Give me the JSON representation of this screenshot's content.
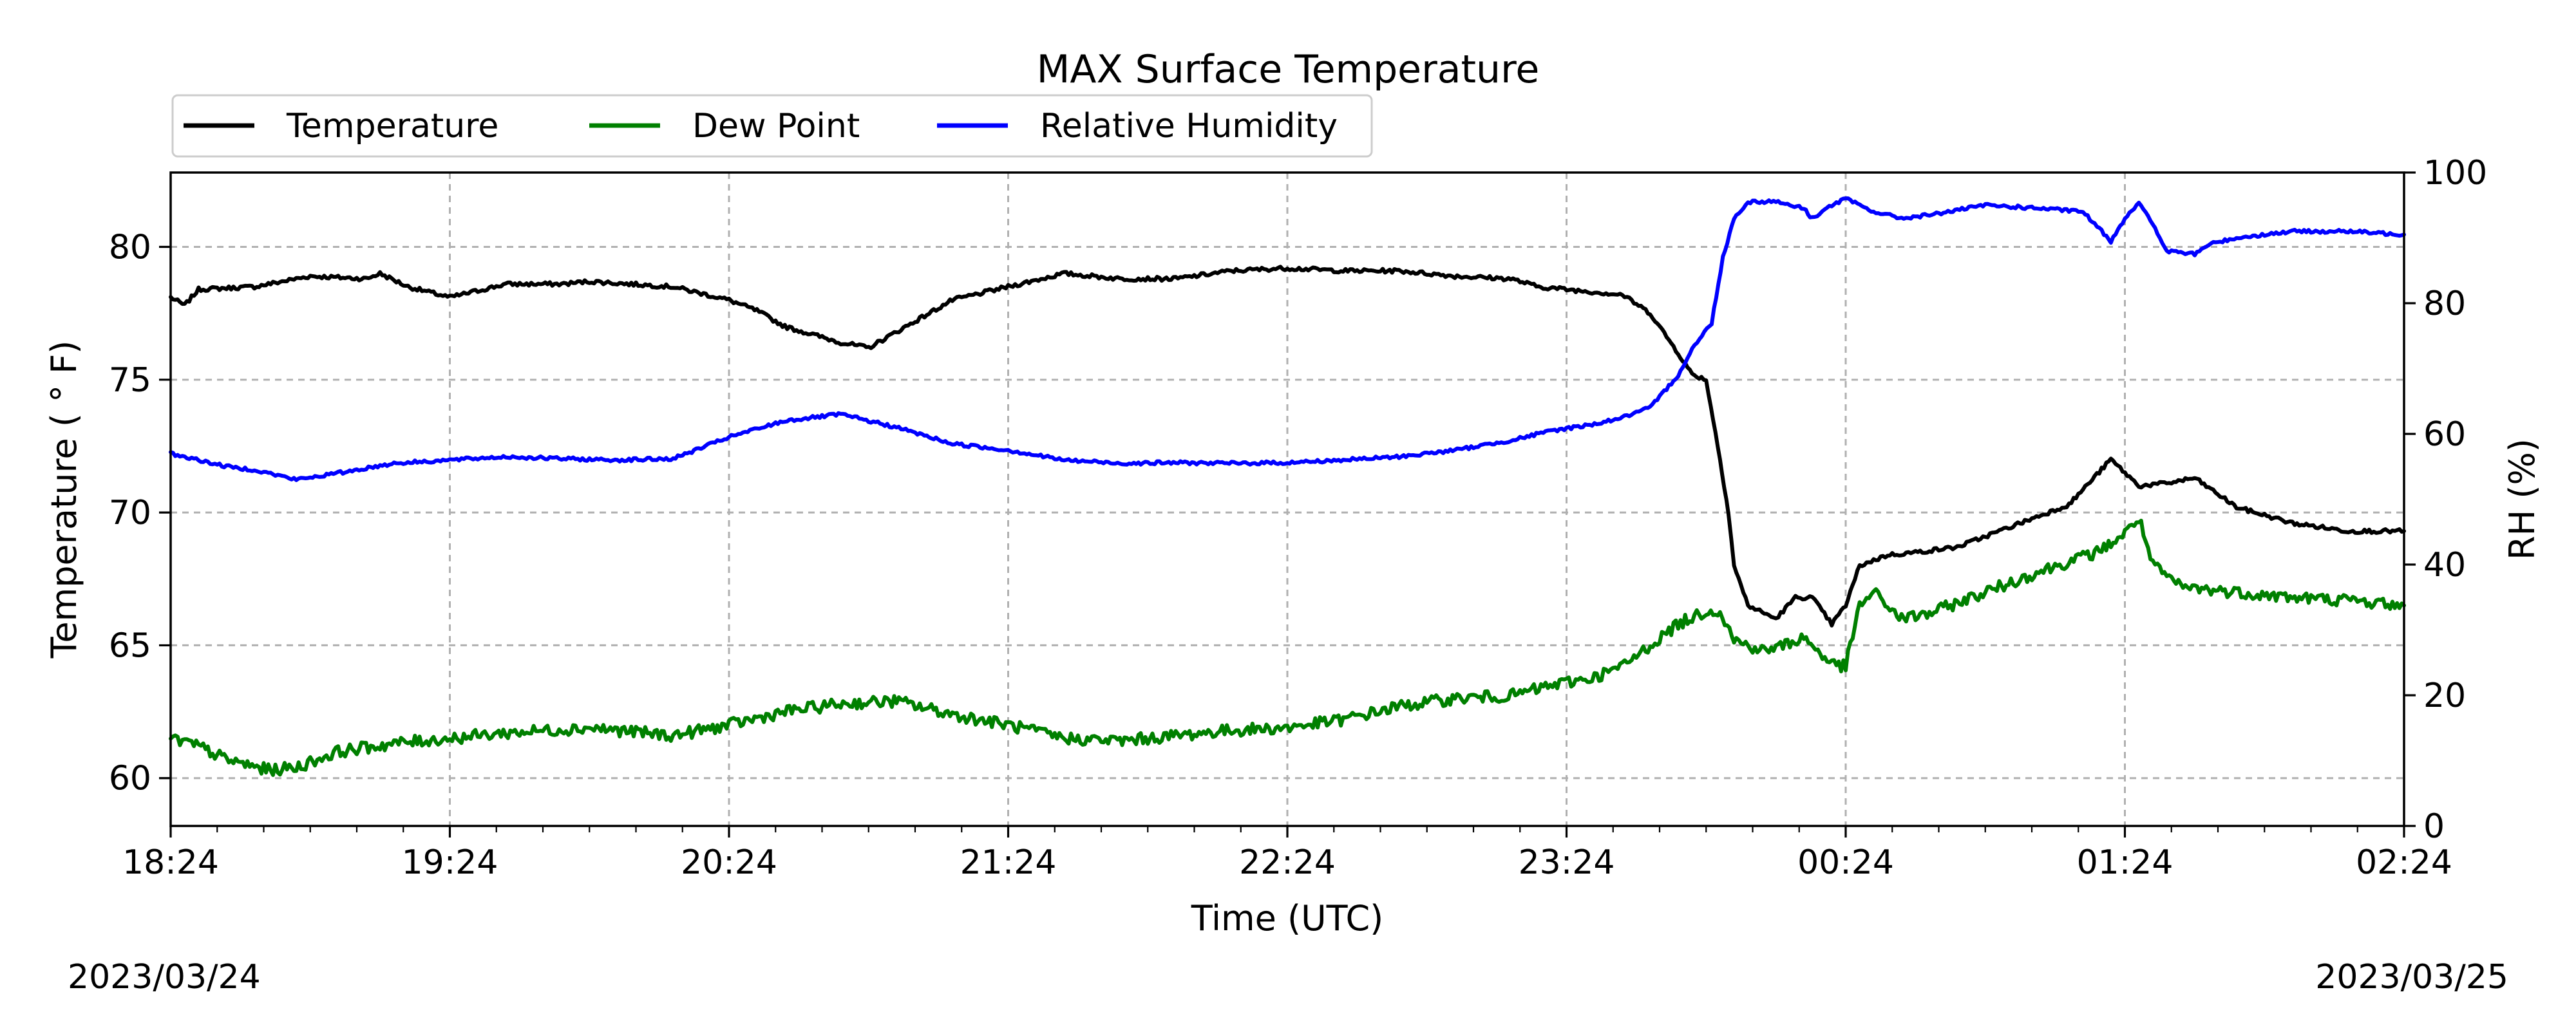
{
  "chart_data": {
    "type": "line",
    "title": "MAX Surface Temperature",
    "xlabel": "Time (UTC)",
    "ylabel": "Temperature ($^\\circ$F)",
    "ylabel_display": "Temperature ( ° F)",
    "y2label": "RH (%)",
    "x_ticks": [
      "18:24",
      "19:24",
      "20:24",
      "21:24",
      "22:24",
      "23:24",
      "00:24",
      "01:24",
      "02:24"
    ],
    "x_range_hours": [
      0,
      8
    ],
    "start_date": "2023/03/24",
    "end_date": "2023/03/25",
    "ylim": [
      58.2,
      82.8
    ],
    "y_ticks": [
      60,
      65,
      70,
      75,
      80
    ],
    "y2lim": [
      0,
      100
    ],
    "y2_ticks": [
      0,
      20,
      40,
      60,
      80,
      100
    ],
    "grid": true,
    "legend_position": "upper-left-outside",
    "series": [
      {
        "name": "Temperature",
        "axis": "left",
        "color": "#000000",
        "x": [
          0.0,
          0.05,
          0.1,
          0.3,
          0.5,
          0.7,
          0.75,
          0.85,
          1.0,
          1.2,
          1.4,
          1.5,
          1.8,
          2.0,
          2.1,
          2.2,
          2.4,
          2.5,
          2.6,
          2.8,
          3.0,
          3.2,
          3.4,
          3.6,
          3.8,
          4.0,
          4.2,
          4.4,
          4.6,
          4.8,
          4.9,
          5.0,
          5.1,
          5.2,
          5.3,
          5.4,
          5.45,
          5.5,
          5.55,
          5.58,
          5.6,
          5.65,
          5.75,
          5.82,
          5.88,
          5.95,
          6.0,
          6.05,
          6.15,
          6.25,
          6.4,
          6.6,
          6.8,
          6.95,
          7.0,
          7.05,
          7.15,
          7.25,
          7.4,
          7.6,
          7.8,
          8.0
        ],
        "y": [
          78.1,
          77.8,
          78.4,
          78.5,
          78.9,
          78.8,
          79.0,
          78.5,
          78.1,
          78.6,
          78.6,
          78.7,
          78.5,
          78.0,
          77.6,
          77.0,
          76.4,
          76.2,
          76.8,
          78.0,
          78.5,
          79.0,
          78.8,
          78.8,
          79.1,
          79.2,
          79.1,
          79.1,
          78.9,
          78.8,
          78.5,
          78.4,
          78.3,
          78.2,
          77.5,
          76.0,
          75.2,
          75.0,
          72.0,
          70.0,
          68.0,
          66.5,
          66.0,
          66.8,
          66.8,
          65.8,
          66.5,
          68.0,
          68.4,
          68.5,
          68.7,
          69.5,
          70.3,
          72.0,
          71.5,
          71.0,
          71.1,
          71.3,
          70.2,
          69.6,
          69.3,
          69.3
        ]
      },
      {
        "name": "Dew Point",
        "axis": "left",
        "color": "#008000",
        "x": [
          0.0,
          0.1,
          0.2,
          0.35,
          0.45,
          0.6,
          0.8,
          1.0,
          1.2,
          1.5,
          1.8,
          2.0,
          2.2,
          2.4,
          2.6,
          2.8,
          3.0,
          3.2,
          3.4,
          3.6,
          3.8,
          4.0,
          4.2,
          4.4,
          4.6,
          4.8,
          4.95,
          5.1,
          5.2,
          5.3,
          5.4,
          5.5,
          5.55,
          5.6,
          5.7,
          5.75,
          5.85,
          5.95,
          6.0,
          6.05,
          6.1,
          6.2,
          6.3,
          6.5,
          6.7,
          6.9,
          7.0,
          7.05,
          7.1,
          7.2,
          7.4,
          7.6,
          7.8,
          8.0
        ],
        "y": [
          61.5,
          61.2,
          60.7,
          60.3,
          60.4,
          61.0,
          61.3,
          61.5,
          61.7,
          61.9,
          61.6,
          62.0,
          62.5,
          62.8,
          62.9,
          62.4,
          62.0,
          61.5,
          61.4,
          61.6,
          61.8,
          61.9,
          62.2,
          62.7,
          63.0,
          63.1,
          63.5,
          63.8,
          64.2,
          65.0,
          65.8,
          66.3,
          66.3,
          65.2,
          64.8,
          64.9,
          65.3,
          64.3,
          64.2,
          66.5,
          67.0,
          66.0,
          66.2,
          67.0,
          67.8,
          68.5,
          69.2,
          69.8,
          68.0,
          67.2,
          67.0,
          66.8,
          66.7,
          66.5
        ]
      },
      {
        "name": "Relative Humidity",
        "axis": "right",
        "color": "#0000ff",
        "x": [
          0.0,
          0.1,
          0.2,
          0.3,
          0.45,
          0.6,
          0.8,
          1.0,
          1.2,
          1.4,
          1.6,
          1.8,
          2.0,
          2.2,
          2.4,
          2.6,
          2.8,
          3.0,
          3.2,
          3.4,
          3.6,
          3.8,
          4.0,
          4.2,
          4.4,
          4.6,
          4.8,
          4.95,
          5.1,
          5.2,
          5.3,
          5.4,
          5.45,
          5.52,
          5.56,
          5.6,
          5.65,
          5.75,
          5.85,
          5.88,
          5.95,
          6.0,
          6.1,
          6.2,
          6.3,
          6.5,
          6.7,
          6.85,
          6.95,
          7.0,
          7.05,
          7.1,
          7.15,
          7.25,
          7.3,
          7.4,
          7.6,
          7.8,
          8.0
        ],
        "y": [
          57.0,
          56.0,
          55.0,
          54.5,
          53.0,
          54.0,
          55.5,
          56.0,
          56.5,
          56.2,
          56.0,
          56.2,
          59.5,
          62.0,
          63.0,
          61.0,
          58.5,
          57.5,
          56.0,
          55.5,
          55.6,
          55.5,
          55.6,
          56.0,
          56.5,
          57.5,
          59.0,
          60.5,
          61.5,
          62.5,
          64.0,
          69.0,
          73.0,
          77.0,
          87.0,
          93.0,
          95.5,
          95.6,
          94.5,
          93.0,
          95.0,
          96.0,
          94.0,
          93.0,
          93.5,
          95.0,
          94.5,
          94.0,
          89.5,
          93.0,
          95.5,
          92.0,
          88.0,
          87.5,
          89.0,
          90.0,
          91.0,
          91.0,
          90.5
        ]
      }
    ]
  }
}
